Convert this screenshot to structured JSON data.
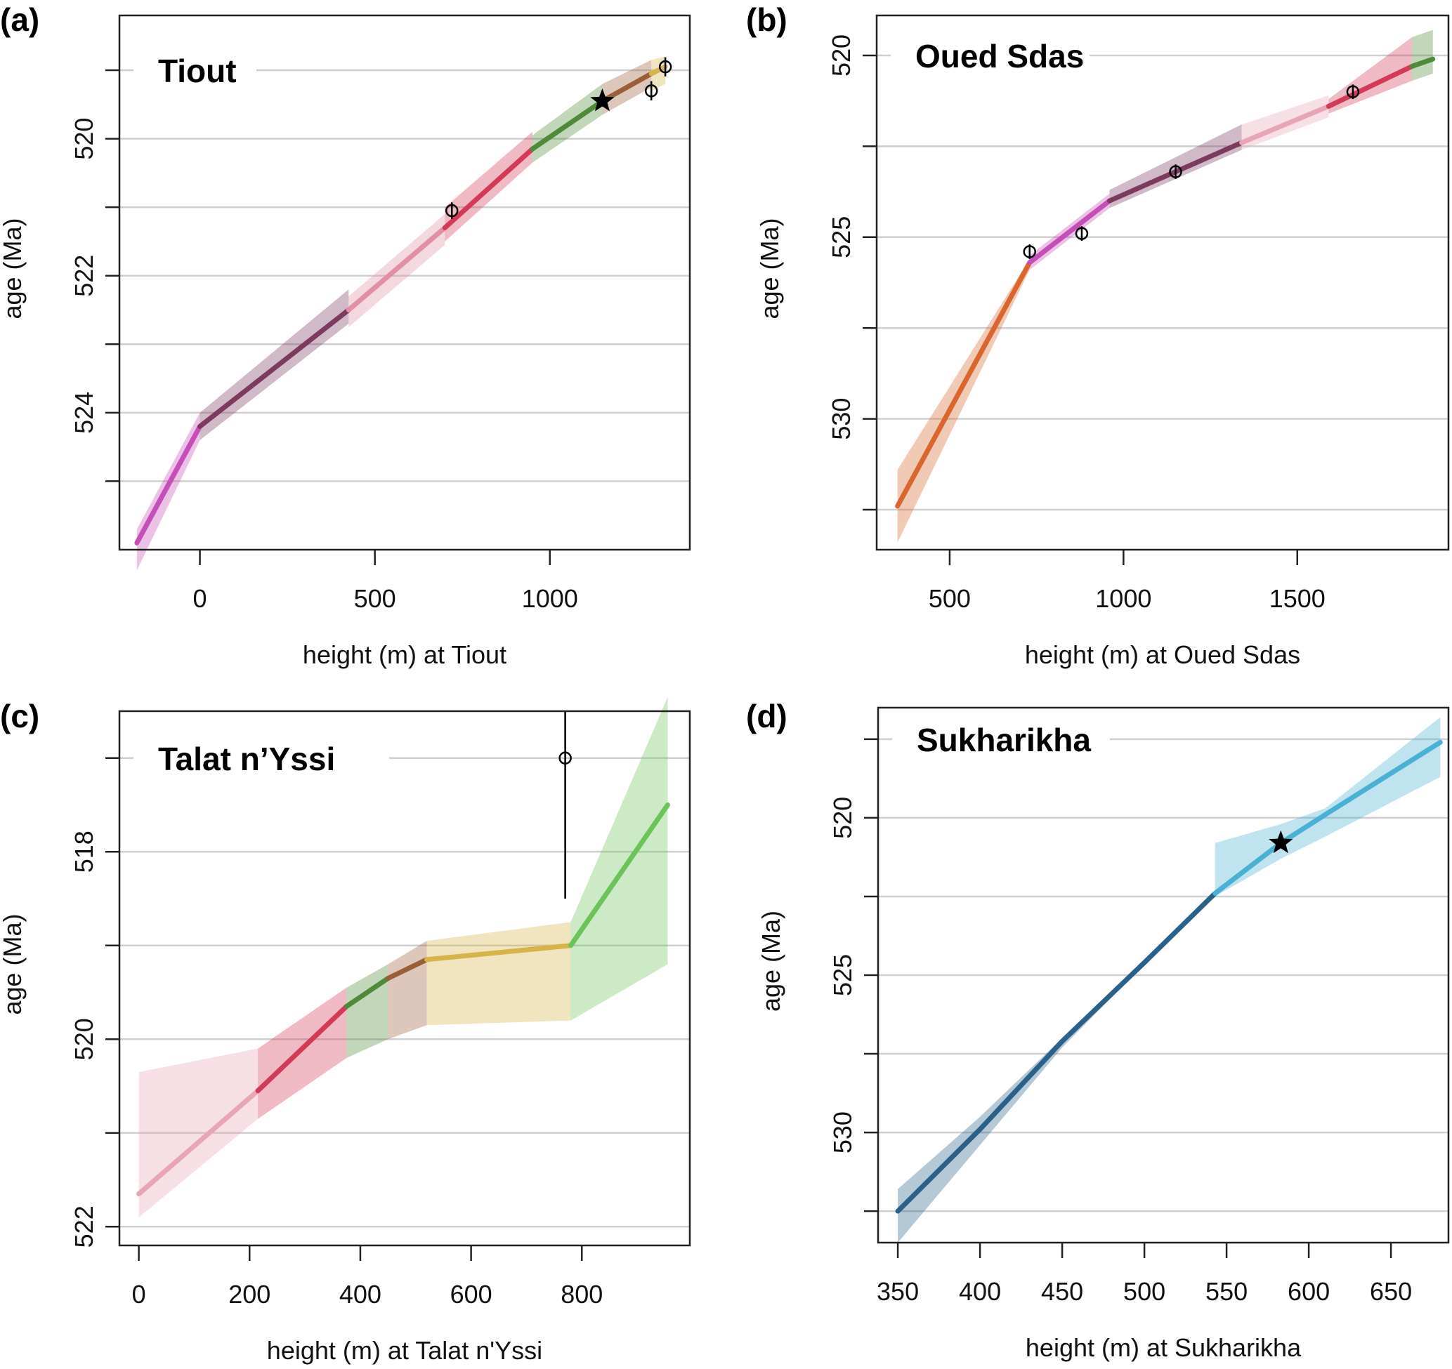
{
  "chart_data": [
    {
      "type": "line",
      "panel": "(a)",
      "title": "Tiout",
      "xlabel": "height (m) at Tiout",
      "ylabel": "age (Ma)",
      "xlim": [
        -230,
        1400
      ],
      "ylim": [
        526.0,
        518.2
      ],
      "y_reversed": true,
      "xticks": [
        0,
        500,
        1000
      ],
      "yticks": [
        519,
        520,
        521,
        522,
        523,
        524,
        525
      ],
      "ytick_labels": {
        "520": "520",
        "522": "522",
        "524": "524"
      },
      "grid": "horizontal",
      "segments": [
        {
          "color": "#c54fb8",
          "x": [
            -180,
            0
          ],
          "y": [
            525.9,
            524.2
          ],
          "upper": [
            525.7,
            524.0
          ],
          "lower": [
            526.3,
            524.4
          ]
        },
        {
          "color": "#7b3a5e",
          "x": [
            0,
            425
          ],
          "y": [
            524.2,
            522.5
          ],
          "upper": [
            524.0,
            522.2
          ],
          "lower": [
            524.4,
            522.7
          ]
        },
        {
          "color": "#e08fa4",
          "x": [
            425,
            700
          ],
          "y": [
            522.5,
            521.3
          ],
          "upper": [
            522.3,
            521.1
          ],
          "lower": [
            522.75,
            521.55
          ]
        },
        {
          "color": "#d23a57",
          "x": [
            700,
            950
          ],
          "y": [
            521.3,
            520.15
          ],
          "upper": [
            521.0,
            519.9
          ],
          "lower": [
            521.5,
            520.35
          ]
        },
        {
          "color": "#4f8a3a",
          "x": [
            950,
            1150
          ],
          "y": [
            520.15,
            519.45
          ],
          "upper": [
            519.95,
            519.2
          ],
          "lower": [
            520.35,
            519.65
          ]
        },
        {
          "color": "#9a5e38",
          "x": [
            1150,
            1290
          ],
          "y": [
            519.45,
            519.05
          ],
          "upper": [
            519.2,
            518.85
          ],
          "lower": [
            519.65,
            519.25
          ]
        },
        {
          "color": "#d6b44a",
          "x": [
            1290,
            1330
          ],
          "y": [
            519.05,
            518.95
          ],
          "upper": [
            518.85,
            518.8
          ],
          "lower": [
            519.3,
            519.2
          ]
        }
      ],
      "dates": [
        {
          "x": 720,
          "y": 521.05,
          "err": 0.12
        },
        {
          "x": 1290,
          "y": 519.3,
          "err": 0.14
        },
        {
          "x": 1330,
          "y": 518.95,
          "err": 0.14
        }
      ],
      "stars": [
        {
          "x": 1150,
          "y": 519.45
        }
      ]
    },
    {
      "type": "line",
      "panel": "(b)",
      "title": "Oued Sdas",
      "xlabel": "height (m) at Oued Sdas",
      "ylabel": "age (Ma)",
      "xlim": [
        290,
        1935
      ],
      "ylim": [
        533.6,
        518.9
      ],
      "y_reversed": true,
      "xticks": [
        500,
        1000,
        1500
      ],
      "yticks": [
        520,
        522.5,
        525,
        527.5,
        530,
        532.5
      ],
      "ytick_labels": {
        "520": "520",
        "525": "525",
        "530": "530"
      },
      "grid": "horizontal",
      "segments": [
        {
          "color": "#d8662f",
          "x": [
            350,
            730
          ],
          "y": [
            532.4,
            525.7
          ],
          "upper": [
            531.4,
            525.6
          ],
          "lower": [
            533.4,
            525.9
          ]
        },
        {
          "color": "#c54fb8",
          "x": [
            730,
            960
          ],
          "y": [
            525.7,
            524.0
          ],
          "upper": [
            525.5,
            523.8
          ],
          "lower": [
            525.9,
            524.2
          ]
        },
        {
          "color": "#7b3a5e",
          "x": [
            960,
            1340
          ],
          "y": [
            524.0,
            522.4
          ],
          "upper": [
            523.7,
            521.9
          ],
          "lower": [
            524.2,
            522.6
          ]
        },
        {
          "color": "#e8a5b5",
          "x": [
            1340,
            1590
          ],
          "y": [
            522.4,
            521.4
          ],
          "upper": [
            521.9,
            521.1
          ],
          "lower": [
            522.6,
            521.7
          ]
        },
        {
          "color": "#d23a57",
          "x": [
            1590,
            1830
          ],
          "y": [
            521.4,
            520.3
          ],
          "upper": [
            521.2,
            519.5
          ],
          "lower": [
            521.6,
            520.7
          ]
        },
        {
          "color": "#4f8a3a",
          "x": [
            1830,
            1890
          ],
          "y": [
            520.3,
            520.1
          ],
          "upper": [
            519.5,
            519.3
          ],
          "lower": [
            520.7,
            520.5
          ]
        }
      ],
      "dates": [
        {
          "x": 730,
          "y": 525.4,
          "err": 0.2
        },
        {
          "x": 880,
          "y": 524.9,
          "err": 0.2
        },
        {
          "x": 1150,
          "y": 523.2,
          "err": 0.2
        },
        {
          "x": 1660,
          "y": 521.0,
          "err": 0.2
        }
      ],
      "stars": []
    },
    {
      "type": "line",
      "panel": "(c)",
      "title": "Talat n’Yssi",
      "xlabel": "height (m) at Talat n'Yssi",
      "ylabel": "age (Ma)",
      "xlim": [
        -35,
        995
      ],
      "ylim": [
        522.2,
        516.5
      ],
      "y_reversed": true,
      "xticks": [
        0,
        200,
        400,
        600,
        800
      ],
      "yticks": [
        517,
        518,
        519,
        520,
        521,
        522
      ],
      "ytick_labels": {
        "518": "518",
        "520": "520",
        "522": "522"
      },
      "grid": "horizontal",
      "segments": [
        {
          "color": "#e8a5b5",
          "x": [
            0,
            215
          ],
          "y": [
            521.65,
            520.55
          ],
          "upper": [
            520.35,
            520.1
          ],
          "lower": [
            521.9,
            520.85
          ]
        },
        {
          "color": "#d23a57",
          "x": [
            215,
            375
          ],
          "y": [
            520.55,
            519.65
          ],
          "upper": [
            520.1,
            519.45
          ],
          "lower": [
            520.85,
            520.2
          ]
        },
        {
          "color": "#4f8a3a",
          "x": [
            375,
            450
          ],
          "y": [
            519.65,
            519.35
          ],
          "upper": [
            519.45,
            519.2
          ],
          "lower": [
            520.2,
            520.0
          ]
        },
        {
          "color": "#9a5e38",
          "x": [
            450,
            520
          ],
          "y": [
            519.35,
            519.15
          ],
          "upper": [
            519.2,
            518.95
          ],
          "lower": [
            520.0,
            519.85
          ]
        },
        {
          "color": "#d6b44a",
          "x": [
            520,
            780
          ],
          "y": [
            519.15,
            519.0
          ],
          "upper": [
            518.95,
            518.75
          ],
          "lower": [
            519.85,
            519.8
          ]
        },
        {
          "color": "#6cc35a",
          "x": [
            780,
            955
          ],
          "y": [
            519.0,
            517.5
          ],
          "upper": [
            518.75,
            516.35
          ],
          "lower": [
            519.8,
            519.2
          ]
        }
      ],
      "dates": [
        {
          "x": 770,
          "y": 517.0,
          "err_upper": 516.45,
          "err_lower": 518.5
        }
      ],
      "stars": []
    },
    {
      "type": "line",
      "panel": "(d)",
      "title": "Sukharikha",
      "xlabel": "height (m) at Sukharikha",
      "ylabel": "age (Ma)",
      "xlim": [
        338,
        685
      ],
      "ylim": [
        533.5,
        516.5
      ],
      "y_reversed": true,
      "xticks": [
        350,
        400,
        450,
        500,
        550,
        600,
        650
      ],
      "yticks": [
        517.5,
        520,
        522.5,
        525,
        527.5,
        530,
        532.5
      ],
      "ytick_labels": {
        "520": "520",
        "525": "525",
        "530": "530"
      },
      "grid": "horizontal",
      "segments": [
        {
          "color": "#2b6189",
          "x": [
            350,
            400,
            450,
            500,
            543
          ],
          "y": [
            532.5,
            529.9,
            527.1,
            524.6,
            522.4
          ],
          "upper": [
            531.8,
            529.5,
            527.0,
            524.55,
            522.3
          ],
          "lower": [
            533.5,
            530.4,
            527.3,
            524.65,
            522.5
          ]
        },
        {
          "color": "#4ab0d4",
          "x": [
            543,
            583,
            610,
            680
          ],
          "y": [
            522.4,
            520.8,
            519.9,
            517.6
          ],
          "upper": [
            520.8,
            520.2,
            519.7,
            516.8
          ],
          "lower": [
            522.5,
            521.3,
            520.6,
            518.7
          ]
        }
      ],
      "dates": [],
      "stars": [
        {
          "x": 583,
          "y": 520.8
        }
      ]
    }
  ]
}
